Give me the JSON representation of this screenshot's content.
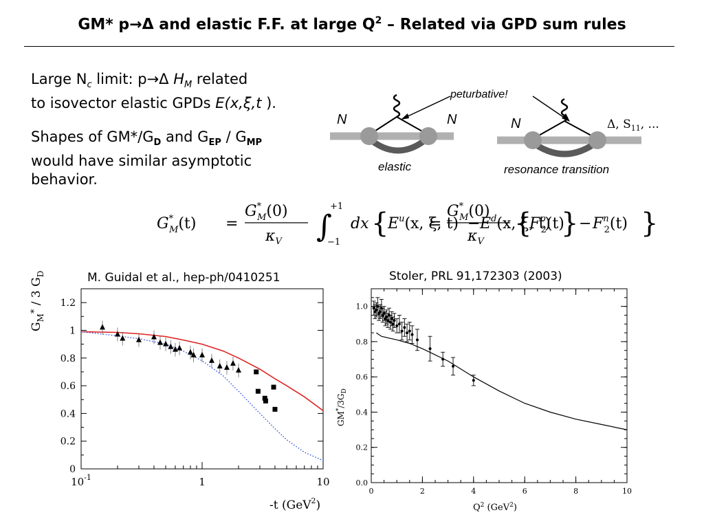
{
  "title": {
    "prefix": "GM* p→Δ and elastic F.F. at large Q",
    "sup": "2",
    "suffix": " – Related via GPD sum rules"
  },
  "intro": {
    "p1_a": "Large N",
    "p1_sub": "c",
    "p1_b": " limit:  p→Δ  ",
    "p1_H": "H",
    "p1_Hsub": "M",
    "p1_c": " related",
    "p1_line2_a": "to isovector elastic GPDs ",
    "p1_line2_E": "E(x,ξ,t",
    "p1_line2_b": " ).",
    "p2_a": "Shapes of GM*/G",
    "p2_sub1": "D",
    "p2_b": " and G",
    "p2_sub2": "EP",
    "p2_c": " / G",
    "p2_sub3": "MP",
    "p2_line2": "would have similar asymptotic",
    "p2_line3": "behavior."
  },
  "diagram": {
    "annotation": "peturbative!",
    "left_N1": "N",
    "left_N2": "N",
    "left_label": "elastic",
    "right_N": "N",
    "right_out": "Δ, S",
    "right_out_sub": "11",
    "right_out_tail": ", ...",
    "right_label": "resonance transition"
  },
  "formula": {
    "lhs": "G",
    "lhs_sup": "*",
    "lhs_sub": "M",
    "lhs_arg": "(t)",
    "eq": "=",
    "frac_num": "G",
    "frac_num_sup": "*",
    "frac_num_sub": "M",
    "frac_num_arg": "(0)",
    "frac_den": "κ",
    "frac_den_sub": "V",
    "int_upper": "+1",
    "int_lower": "−1",
    "integrand": "dx",
    "Eu": "E",
    "Eu_sup": "u",
    "Eu_arg": "(x, ξ, t)",
    "minus": "−",
    "Ed": "E",
    "Ed_sup": "d",
    "Ed_arg": "(x, ξ, t)",
    "F2p": "F",
    "F2p_sup": "p",
    "F2p_sub": "2",
    "F2p_arg": "(t)",
    "F2n": "F",
    "F2n_sup": "n",
    "F2n_sub": "2",
    "F2n_arg": "(t)"
  },
  "captions": {
    "left": "M. Guidal et al., hep-ph/0410251",
    "right": "Stoler, PRL 91,172303 (2003)"
  },
  "chart_data": [
    {
      "type": "scatter",
      "xscale": "log",
      "xlim": [
        0.1,
        10
      ],
      "ylim": [
        0,
        1.3
      ],
      "ylabel": "G_M* / 3 G_D",
      "xlabel": "-t (GeV²)",
      "xticks": [
        "10^-1",
        "1",
        "10"
      ],
      "yticks": [
        "0",
        "0.2",
        "0.4",
        "0.6",
        "0.8",
        "1",
        "1.2"
      ],
      "series": [
        {
          "kind": "line",
          "color": "#e02020",
          "x": [
            0.1,
            0.2,
            0.3,
            0.5,
            0.7,
            1.0,
            1.5,
            2.0,
            3.0,
            4.0,
            5.0,
            7.0,
            10.0
          ],
          "y": [
            0.99,
            0.985,
            0.975,
            0.955,
            0.93,
            0.9,
            0.85,
            0.8,
            0.72,
            0.65,
            0.6,
            0.52,
            0.42
          ]
        },
        {
          "kind": "dotted",
          "color": "#3050e0",
          "x": [
            0.1,
            0.2,
            0.3,
            0.5,
            0.7,
            1.0,
            1.5,
            2.0,
            3.0,
            4.0,
            5.0,
            7.0,
            10.0
          ],
          "y": [
            0.99,
            0.96,
            0.94,
            0.9,
            0.85,
            0.78,
            0.67,
            0.56,
            0.4,
            0.29,
            0.21,
            0.12,
            0.06
          ]
        },
        {
          "kind": "triangles",
          "color": "#000000",
          "x": [
            0.15,
            0.2,
            0.22,
            0.3,
            0.4,
            0.45,
            0.5,
            0.55,
            0.6,
            0.65,
            0.8,
            0.85,
            1.0,
            1.2,
            1.4,
            1.6,
            1.8,
            2.0
          ],
          "y": [
            1.02,
            0.97,
            0.94,
            0.93,
            0.95,
            0.91,
            0.9,
            0.88,
            0.86,
            0.87,
            0.84,
            0.82,
            0.82,
            0.78,
            0.74,
            0.73,
            0.76,
            0.71
          ]
        },
        {
          "kind": "squares",
          "color": "#000000",
          "x": [
            2.8,
            2.9,
            3.3,
            3.35,
            3.9,
            4.0
          ],
          "y": [
            0.7,
            0.56,
            0.51,
            0.49,
            0.59,
            0.43
          ]
        }
      ]
    },
    {
      "type": "scatter",
      "xlim": [
        0,
        10
      ],
      "ylim": [
        0,
        1.1
      ],
      "ylabel": "GM*/3G_D",
      "xlabel": "Q² (GeV²)",
      "xticks": [
        "0",
        "2",
        "4",
        "6",
        "8",
        "10"
      ],
      "yticks": [
        "0.0",
        "0.2",
        "0.4",
        "0.6",
        "0.8",
        "1.0"
      ],
      "series": [
        {
          "kind": "line",
          "color": "#000000",
          "x": [
            0.2,
            0.4,
            0.7,
            1.0,
            1.5,
            2.0,
            3.0,
            4.0,
            5.0,
            6.0,
            7.0,
            8.0,
            9.0,
            10.0
          ],
          "y": [
            0.85,
            0.83,
            0.82,
            0.81,
            0.79,
            0.76,
            0.69,
            0.6,
            0.52,
            0.45,
            0.4,
            0.36,
            0.33,
            0.3
          ]
        },
        {
          "kind": "points",
          "color": "#000000",
          "x": [
            0.1,
            0.15,
            0.2,
            0.25,
            0.3,
            0.35,
            0.4,
            0.45,
            0.5,
            0.55,
            0.6,
            0.65,
            0.7,
            0.75,
            0.8,
            0.85,
            0.9,
            1.0,
            1.1,
            1.2,
            1.3,
            1.4,
            1.5,
            1.6,
            1.8,
            2.3,
            2.8,
            3.2,
            4.0
          ],
          "y": [
            0.99,
            0.97,
            0.98,
            1.0,
            0.96,
            0.97,
            0.99,
            0.95,
            0.96,
            0.93,
            0.94,
            0.92,
            0.95,
            0.91,
            0.93,
            0.9,
            0.92,
            0.89,
            0.9,
            0.86,
            0.88,
            0.85,
            0.86,
            0.84,
            0.81,
            0.76,
            0.7,
            0.66,
            0.58
          ],
          "err": [
            0.04,
            0.04,
            0.04,
            0.05,
            0.04,
            0.04,
            0.05,
            0.04,
            0.04,
            0.04,
            0.04,
            0.04,
            0.04,
            0.04,
            0.04,
            0.04,
            0.04,
            0.04,
            0.05,
            0.05,
            0.05,
            0.05,
            0.05,
            0.05,
            0.06,
            0.07,
            0.04,
            0.05,
            0.03
          ]
        }
      ]
    }
  ]
}
